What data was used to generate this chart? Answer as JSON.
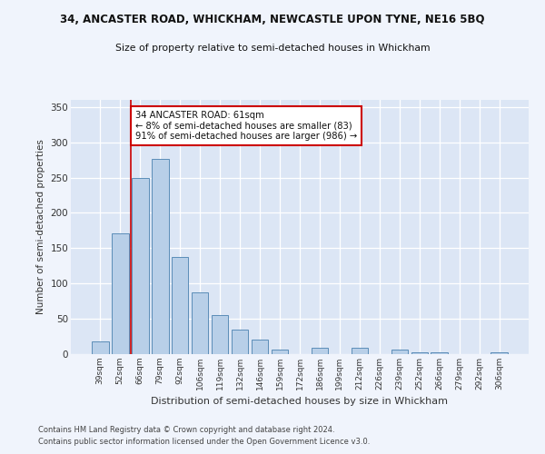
{
  "title1": "34, ANCASTER ROAD, WHICKHAM, NEWCASTLE UPON TYNE, NE16 5BQ",
  "title2": "Size of property relative to semi-detached houses in Whickham",
  "xlabel": "Distribution of semi-detached houses by size in Whickham",
  "ylabel": "Number of semi-detached properties",
  "categories": [
    "39sqm",
    "52sqm",
    "66sqm",
    "79sqm",
    "92sqm",
    "106sqm",
    "119sqm",
    "132sqm",
    "146sqm",
    "159sqm",
    "172sqm",
    "186sqm",
    "199sqm",
    "212sqm",
    "226sqm",
    "239sqm",
    "252sqm",
    "266sqm",
    "279sqm",
    "292sqm",
    "306sqm"
  ],
  "values": [
    18,
    171,
    250,
    277,
    137,
    88,
    55,
    35,
    20,
    7,
    0,
    9,
    0,
    9,
    0,
    6,
    3,
    2,
    0,
    0,
    3
  ],
  "bar_color": "#b8cfe8",
  "bar_edge_color": "#5b8db8",
  "vline_color": "#cc0000",
  "vline_pos": 1.55,
  "annotation_text": "34 ANCASTER ROAD: 61sqm\n← 8% of semi-detached houses are smaller (83)\n91% of semi-detached houses are larger (986) →",
  "annotation_box_color": "#ffffff",
  "annotation_box_edge": "#cc0000",
  "ylim": [
    0,
    360
  ],
  "yticks": [
    0,
    50,
    100,
    150,
    200,
    250,
    300,
    350
  ],
  "footer1": "Contains HM Land Registry data © Crown copyright and database right 2024.",
  "footer2": "Contains public sector information licensed under the Open Government Licence v3.0.",
  "fig_bg_color": "#f0f4fc",
  "plot_bg_color": "#dce6f5"
}
